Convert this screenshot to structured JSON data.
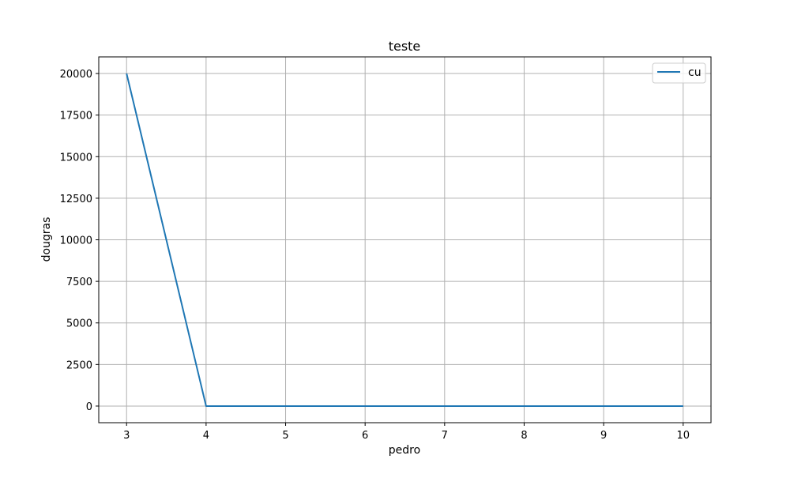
{
  "chart_data": {
    "type": "line",
    "title": "teste",
    "xlabel": "pedro",
    "ylabel": "dougras",
    "x": [
      3,
      4,
      5,
      6,
      7,
      8,
      9,
      10
    ],
    "series": [
      {
        "name": "cu",
        "values": [
          20000,
          0,
          0,
          0,
          0,
          0,
          0,
          0
        ],
        "color": "#1f77b4"
      }
    ],
    "xlim": [
      2.65,
      10.35
    ],
    "ylim": [
      -1000,
      21000
    ],
    "xticks": [
      3,
      4,
      5,
      6,
      7,
      8,
      9,
      10
    ],
    "yticks": [
      0,
      2500,
      5000,
      7500,
      10000,
      12500,
      15000,
      17500,
      20000
    ],
    "grid": true,
    "legend_position": "top-right"
  }
}
